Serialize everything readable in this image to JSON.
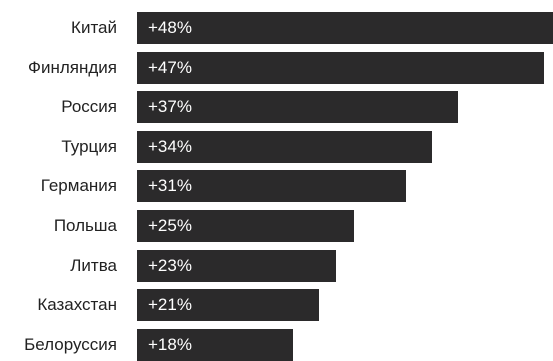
{
  "chart_data": {
    "type": "bar",
    "orientation": "horizontal",
    "categories": [
      "Китай",
      "Финляндия",
      "Россия",
      "Турция",
      "Германия",
      "Польша",
      "Литва",
      "Казахстан",
      "Белоруссия"
    ],
    "values": [
      48,
      47,
      37,
      34,
      31,
      25,
      23,
      21,
      18
    ],
    "data_labels": [
      "+48%",
      "+47%",
      "+37%",
      "+34%",
      "+31%",
      "+25%",
      "+23%",
      "+21%",
      "+18%"
    ],
    "title": "",
    "xlabel": "",
    "ylabel": "",
    "xlim": [
      0,
      48
    ],
    "grid": false,
    "bar_color": "#2b2a2b",
    "label_color": "#ffffff"
  }
}
